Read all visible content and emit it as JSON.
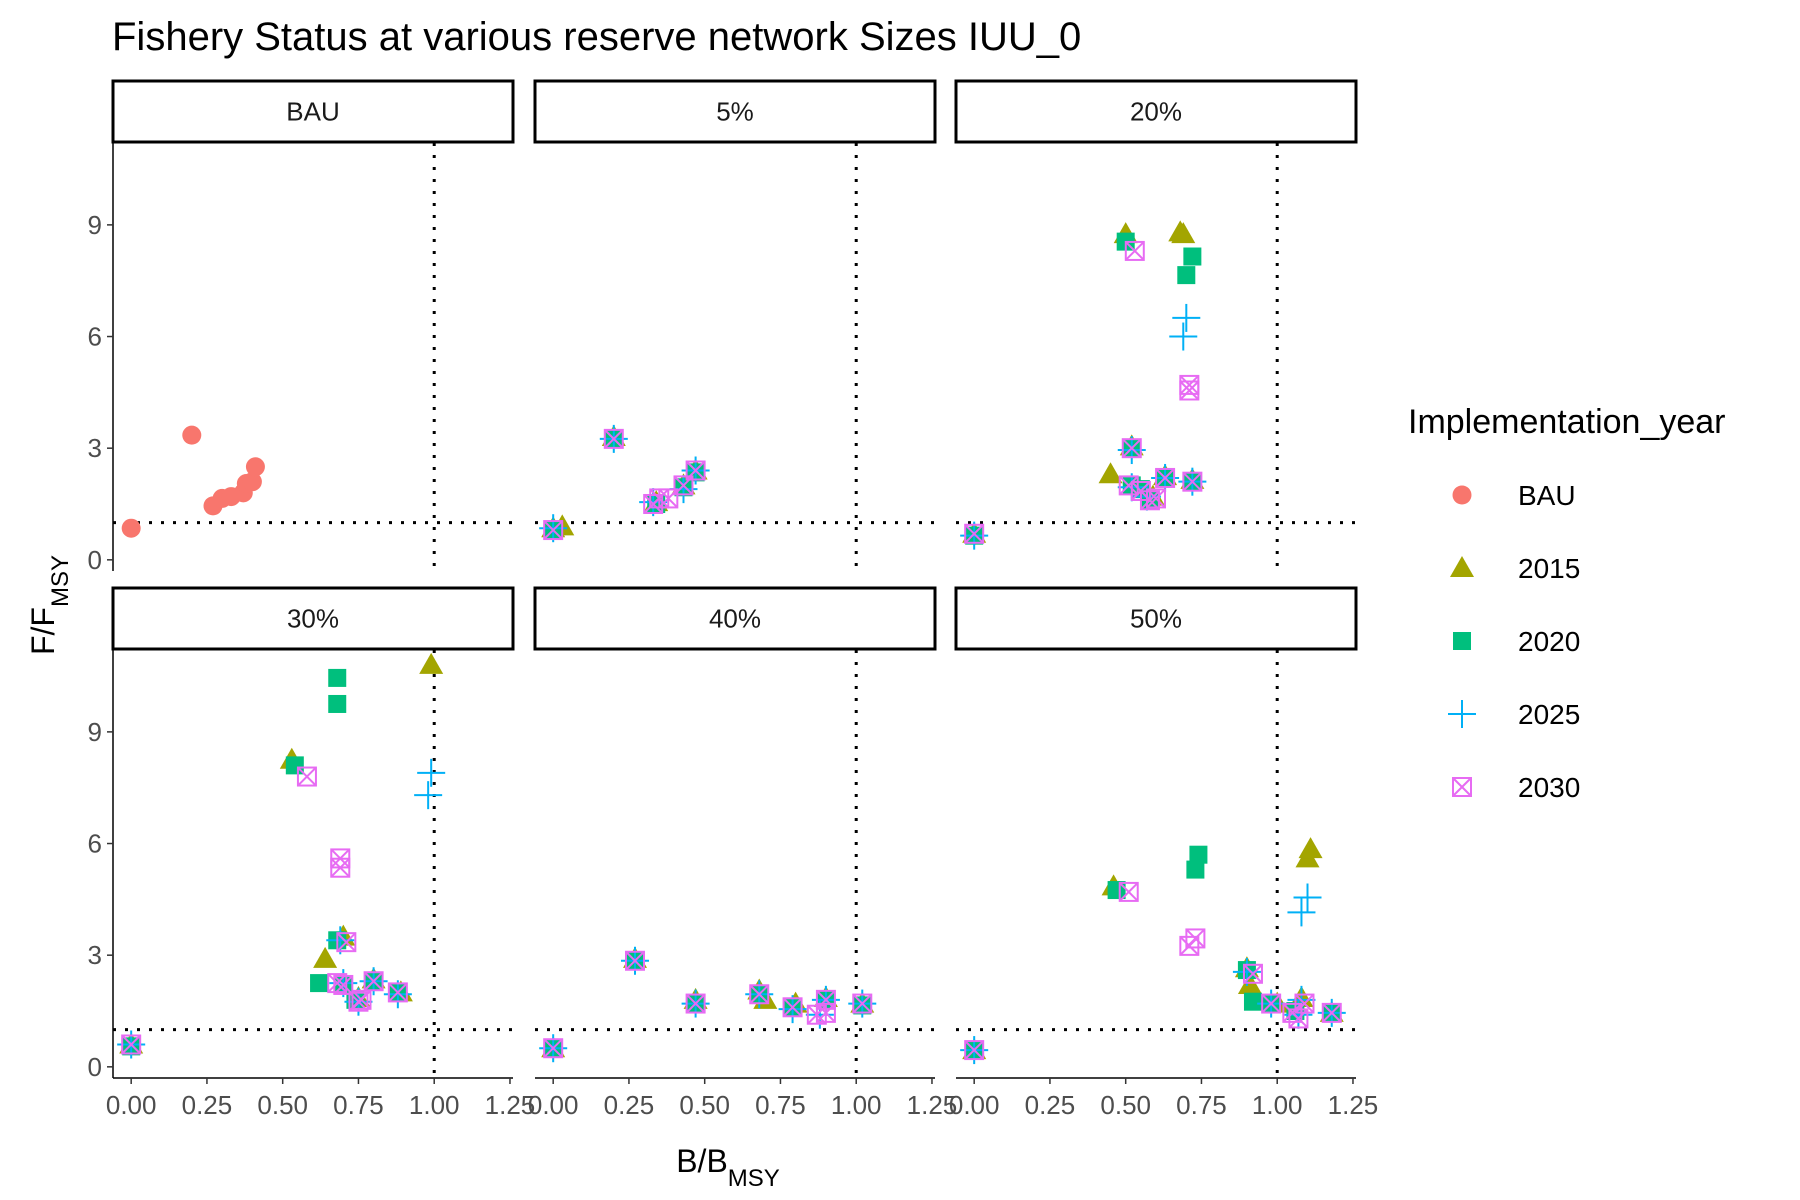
{
  "chart_data": {
    "type": "scatter",
    "title": "Fishery Status at various reserve network Sizes IUU_0",
    "xlabel": {
      "main": "B/B",
      "sub": "MSY"
    },
    "ylabel": {
      "main": "F/F",
      "sub": "MSY"
    },
    "xlim": [
      -0.06,
      1.26
    ],
    "ylim": [
      -0.3,
      11.2
    ],
    "x_ticks": [
      0.0,
      0.25,
      0.5,
      0.75,
      1.0,
      1.25
    ],
    "x_tick_labels": [
      "0.00",
      "0.25",
      "0.50",
      "0.75",
      "1.00",
      "1.25"
    ],
    "y_ticks": [
      0,
      3,
      6,
      9
    ],
    "y_tick_labels": [
      "0",
      "3",
      "6",
      "9"
    ],
    "reference_lines": {
      "x": 1.0,
      "y": 1.0
    },
    "grid": false,
    "legend": {
      "title": "Implementation_year",
      "position": "right",
      "entries": [
        {
          "name": "BAU",
          "color": "#F8766D",
          "shape": "circle"
        },
        {
          "name": "2015",
          "color": "#A3A500",
          "shape": "triangle"
        },
        {
          "name": "2020",
          "color": "#00BF7D",
          "shape": "square"
        },
        {
          "name": "2025",
          "color": "#00B0F6",
          "shape": "plus"
        },
        {
          "name": "2030",
          "color": "#E76BF3",
          "shape": "square-x"
        }
      ]
    },
    "panels": [
      {
        "label": "BAU",
        "series": [
          {
            "name": "BAU",
            "points": [
              [
                0.0,
                0.85
              ],
              [
                0.2,
                3.35
              ],
              [
                0.27,
                1.45
              ],
              [
                0.3,
                1.65
              ],
              [
                0.33,
                1.7
              ],
              [
                0.37,
                1.8
              ],
              [
                0.38,
                2.05
              ],
              [
                0.4,
                2.1
              ],
              [
                0.41,
                2.5
              ]
            ]
          }
        ]
      },
      {
        "label": "5%",
        "series": [
          {
            "name": "2015",
            "points": [
              [
                0.0,
                0.85
              ],
              [
                0.03,
                0.9
              ],
              [
                0.2,
                3.3
              ],
              [
                0.34,
                1.55
              ],
              [
                0.43,
                2.0
              ],
              [
                0.47,
                2.4
              ]
            ]
          },
          {
            "name": "2020",
            "points": [
              [
                0.0,
                0.8
              ],
              [
                0.2,
                3.25
              ],
              [
                0.34,
                1.5
              ],
              [
                0.43,
                1.95
              ],
              [
                0.47,
                2.35
              ]
            ]
          },
          {
            "name": "2025",
            "points": [
              [
                0.0,
                0.85
              ],
              [
                0.2,
                3.25
              ],
              [
                0.33,
                1.55
              ],
              [
                0.43,
                1.9
              ],
              [
                0.47,
                2.4
              ]
            ]
          },
          {
            "name": "2030",
            "points": [
              [
                0.0,
                0.8
              ],
              [
                0.2,
                3.25
              ],
              [
                0.33,
                1.5
              ],
              [
                0.35,
                1.65
              ],
              [
                0.38,
                1.65
              ],
              [
                0.43,
                2.0
              ],
              [
                0.47,
                2.4
              ]
            ]
          }
        ]
      },
      {
        "label": "20%",
        "series": [
          {
            "name": "2015",
            "points": [
              [
                0.0,
                0.7
              ],
              [
                0.45,
                2.3
              ],
              [
                0.5,
                8.75
              ],
              [
                0.68,
                8.8
              ],
              [
                0.69,
                8.75
              ],
              [
                0.52,
                3.05
              ],
              [
                0.59,
                1.7
              ],
              [
                0.63,
                2.25
              ],
              [
                0.72,
                2.15
              ]
            ]
          },
          {
            "name": "2020",
            "points": [
              [
                0.0,
                0.65
              ],
              [
                0.5,
                8.55
              ],
              [
                0.7,
                7.65
              ],
              [
                0.72,
                8.15
              ],
              [
                0.52,
                3.0
              ],
              [
                0.52,
                2.0
              ],
              [
                0.55,
                1.9
              ],
              [
                0.58,
                1.6
              ],
              [
                0.63,
                2.2
              ],
              [
                0.72,
                2.1
              ]
            ]
          },
          {
            "name": "2025",
            "points": [
              [
                0.0,
                0.65
              ],
              [
                0.69,
                6.0
              ],
              [
                0.7,
                6.5
              ],
              [
                0.52,
                2.95
              ],
              [
                0.52,
                1.95
              ],
              [
                0.57,
                1.7
              ],
              [
                0.63,
                2.2
              ],
              [
                0.72,
                2.1
              ]
            ]
          },
          {
            "name": "2030",
            "points": [
              [
                0.0,
                0.7
              ],
              [
                0.53,
                8.3
              ],
              [
                0.71,
                4.55
              ],
              [
                0.71,
                4.7
              ],
              [
                0.52,
                3.0
              ],
              [
                0.51,
                2.0
              ],
              [
                0.55,
                1.85
              ],
              [
                0.58,
                1.6
              ],
              [
                0.6,
                1.65
              ],
              [
                0.63,
                2.2
              ],
              [
                0.72,
                2.1
              ]
            ]
          }
        ]
      },
      {
        "label": "30%",
        "series": [
          {
            "name": "2015",
            "points": [
              [
                0.0,
                0.6
              ],
              [
                0.53,
                8.25
              ],
              [
                0.99,
                10.8
              ],
              [
                0.64,
                2.9
              ],
              [
                0.7,
                3.5
              ],
              [
                0.75,
                1.85
              ],
              [
                0.8,
                2.35
              ],
              [
                0.89,
                2.0
              ]
            ]
          },
          {
            "name": "2020",
            "points": [
              [
                0.0,
                0.55
              ],
              [
                0.54,
                8.1
              ],
              [
                0.68,
                10.45
              ],
              [
                0.68,
                9.75
              ],
              [
                0.62,
                2.25
              ],
              [
                0.68,
                3.4
              ],
              [
                0.7,
                2.2
              ],
              [
                0.74,
                1.8
              ],
              [
                0.8,
                2.3
              ],
              [
                0.88,
                2.0
              ]
            ]
          },
          {
            "name": "2025",
            "points": [
              [
                0.0,
                0.6
              ],
              [
                0.98,
                7.3
              ],
              [
                0.99,
                7.9
              ],
              [
                0.69,
                3.4
              ],
              [
                0.7,
                2.25
              ],
              [
                0.75,
                1.75
              ],
              [
                0.8,
                2.3
              ],
              [
                0.88,
                1.95
              ]
            ]
          },
          {
            "name": "2030",
            "points": [
              [
                0.0,
                0.6
              ],
              [
                0.58,
                7.8
              ],
              [
                0.69,
                5.35
              ],
              [
                0.69,
                5.6
              ],
              [
                0.71,
                3.35
              ],
              [
                0.68,
                2.25
              ],
              [
                0.7,
                2.2
              ],
              [
                0.75,
                1.75
              ],
              [
                0.76,
                1.8
              ],
              [
                0.8,
                2.3
              ],
              [
                0.88,
                2.0
              ]
            ]
          }
        ]
      },
      {
        "label": "40%",
        "series": [
          {
            "name": "2015",
            "points": [
              [
                0.0,
                0.5
              ],
              [
                0.27,
                2.9
              ],
              [
                0.47,
                1.8
              ],
              [
                0.68,
                2.05
              ],
              [
                0.7,
                1.8
              ],
              [
                0.8,
                1.7
              ],
              [
                0.9,
                1.85
              ],
              [
                1.02,
                1.7
              ]
            ]
          },
          {
            "name": "2020",
            "points": [
              [
                0.0,
                0.5
              ],
              [
                0.27,
                2.85
              ],
              [
                0.47,
                1.7
              ],
              [
                0.68,
                1.95
              ],
              [
                0.79,
                1.6
              ],
              [
                0.9,
                1.8
              ],
              [
                1.02,
                1.65
              ]
            ]
          },
          {
            "name": "2025",
            "points": [
              [
                0.0,
                0.5
              ],
              [
                0.27,
                2.85
              ],
              [
                0.47,
                1.7
              ],
              [
                0.68,
                1.95
              ],
              [
                0.79,
                1.55
              ],
              [
                0.88,
                1.4
              ],
              [
                0.9,
                1.8
              ],
              [
                1.02,
                1.7
              ]
            ]
          },
          {
            "name": "2030",
            "points": [
              [
                0.0,
                0.5
              ],
              [
                0.27,
                2.85
              ],
              [
                0.47,
                1.7
              ],
              [
                0.68,
                1.95
              ],
              [
                0.79,
                1.6
              ],
              [
                0.87,
                1.4
              ],
              [
                0.9,
                1.45
              ],
              [
                0.9,
                1.8
              ],
              [
                1.02,
                1.7
              ]
            ]
          }
        ]
      },
      {
        "label": "50%",
        "series": [
          {
            "name": "2015",
            "points": [
              [
                0.0,
                0.45
              ],
              [
                0.46,
                4.85
              ],
              [
                1.1,
                5.6
              ],
              [
                1.11,
                5.85
              ],
              [
                0.9,
                2.65
              ],
              [
                0.91,
                2.2
              ],
              [
                1.0,
                1.7
              ],
              [
                1.08,
                1.85
              ],
              [
                1.18,
                1.45
              ]
            ]
          },
          {
            "name": "2020",
            "points": [
              [
                0.0,
                0.45
              ],
              [
                0.47,
                4.75
              ],
              [
                0.73,
                5.3
              ],
              [
                0.74,
                5.7
              ],
              [
                0.9,
                2.6
              ],
              [
                0.92,
                1.75
              ],
              [
                0.98,
                1.7
              ],
              [
                1.06,
                1.5
              ],
              [
                1.18,
                1.45
              ]
            ]
          },
          {
            "name": "2025",
            "points": [
              [
                0.0,
                0.45
              ],
              [
                1.08,
                4.15
              ],
              [
                1.1,
                4.55
              ],
              [
                0.9,
                2.55
              ],
              [
                0.98,
                1.7
              ],
              [
                1.07,
                1.4
              ],
              [
                1.08,
                1.8
              ],
              [
                1.18,
                1.45
              ]
            ]
          },
          {
            "name": "2030",
            "points": [
              [
                0.0,
                0.45
              ],
              [
                0.51,
                4.7
              ],
              [
                0.71,
                3.25
              ],
              [
                0.73,
                3.45
              ],
              [
                0.92,
                2.5
              ],
              [
                0.98,
                1.7
              ],
              [
                1.05,
                1.45
              ],
              [
                1.07,
                1.3
              ],
              [
                1.09,
                1.7
              ],
              [
                1.18,
                1.45
              ]
            ]
          }
        ]
      }
    ]
  }
}
